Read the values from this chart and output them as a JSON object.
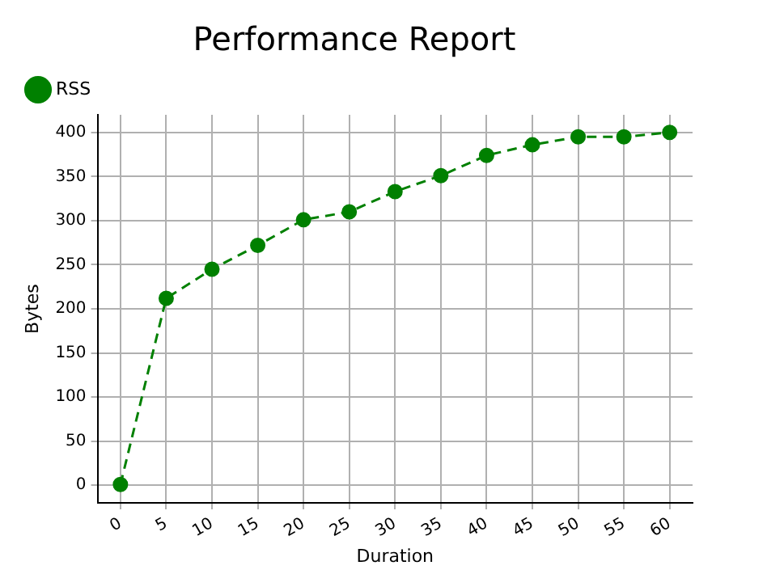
{
  "chart_data": {
    "type": "line",
    "title": "Performance Report",
    "xlabel": "Duration",
    "ylabel": "Bytes",
    "categories": [
      "0",
      "5",
      "10",
      "15",
      "20",
      "25",
      "30",
      "35",
      "40",
      "45",
      "50",
      "55",
      "60"
    ],
    "series": [
      {
        "name": "RSS",
        "color": "#008000",
        "values": [
          1,
          212,
          245,
          272,
          301,
          310,
          333,
          351,
          374,
          386,
          395,
          395,
          400
        ]
      }
    ],
    "ylim": [
      -20,
      420
    ],
    "yticks": [
      0,
      50,
      100,
      150,
      200,
      250,
      300,
      350,
      400
    ],
    "grid": true,
    "legend": "top left",
    "marker": "circle",
    "line_style": "dashed"
  }
}
